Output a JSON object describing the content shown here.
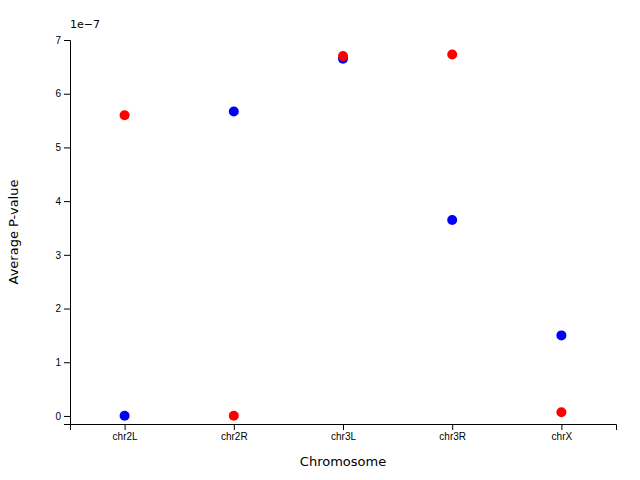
{
  "chart_data": {
    "type": "scatter",
    "categories": [
      "chr2L",
      "chr2R",
      "chr3L",
      "chr3R",
      "chrX"
    ],
    "series": [
      {
        "color": "#0000ff",
        "values": [
          2e-10,
          5.67e-07,
          6.65e-07,
          3.65e-07,
          1.5e-07
        ]
      },
      {
        "color": "#ff0000",
        "values": [
          5.6e-07,
          2e-10,
          6.7e-07,
          6.73e-07,
          7e-09
        ]
      }
    ],
    "xlabel": "Chromosome",
    "ylabel": "Average P-value",
    "ylim": [
      -1.5e-08,
      7e-07
    ],
    "yticks": [
      0,
      {
        "value": 1e-07,
        "label": "1"
      },
      {
        "value": 2e-07,
        "label": "2"
      },
      {
        "value": 3e-07,
        "label": "3"
      },
      {
        "value": 4e-07,
        "label": "4"
      },
      {
        "value": 5e-07,
        "label": "5"
      },
      {
        "value": 6e-07,
        "label": "6"
      },
      {
        "value": 7e-07,
        "label": "7"
      }
    ],
    "annotations": [
      {
        "text": "1e−7"
      }
    ]
  }
}
